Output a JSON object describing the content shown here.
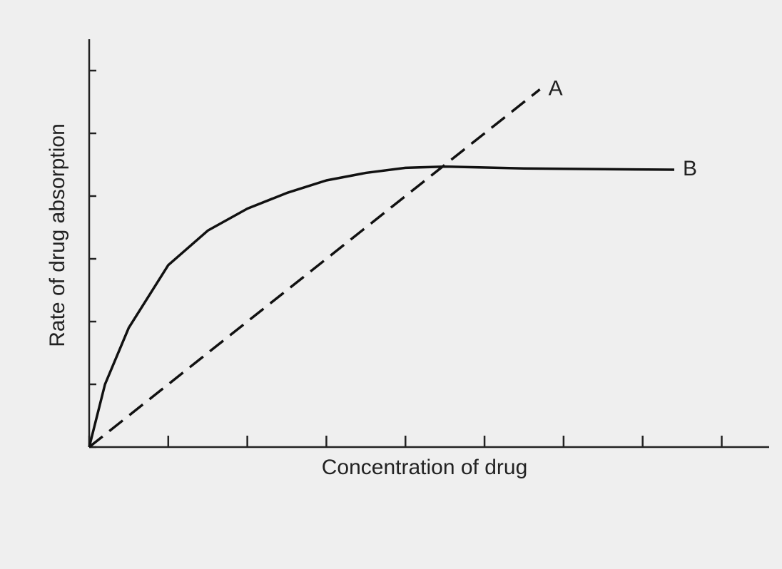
{
  "chart_data": {
    "type": "line",
    "x_label": "Concentration of drug",
    "y_label": "Rate of drug absorption",
    "xlim": [
      0,
      8.6
    ],
    "ylim": [
      0,
      6.5
    ],
    "xticks": [
      0,
      1,
      2,
      3,
      4,
      5,
      6,
      7,
      8
    ],
    "yticks": [
      0,
      1,
      2,
      3,
      4,
      5,
      6
    ],
    "series": [
      {
        "name": "A",
        "color": "#111111",
        "dashed": true,
        "x": [
          0,
          5.7
        ],
        "values": [
          0,
          5.7
        ]
      },
      {
        "name": "B",
        "color": "#111111",
        "dashed": false,
        "x": [
          0,
          0.2,
          0.5,
          1,
          1.5,
          2,
          2.5,
          3,
          3.5,
          4,
          4.5,
          5.5,
          7.4
        ],
        "values": [
          0,
          1.0,
          1.9,
          2.9,
          3.45,
          3.8,
          4.05,
          4.25,
          4.37,
          4.45,
          4.47,
          4.44,
          4.42
        ]
      }
    ]
  }
}
